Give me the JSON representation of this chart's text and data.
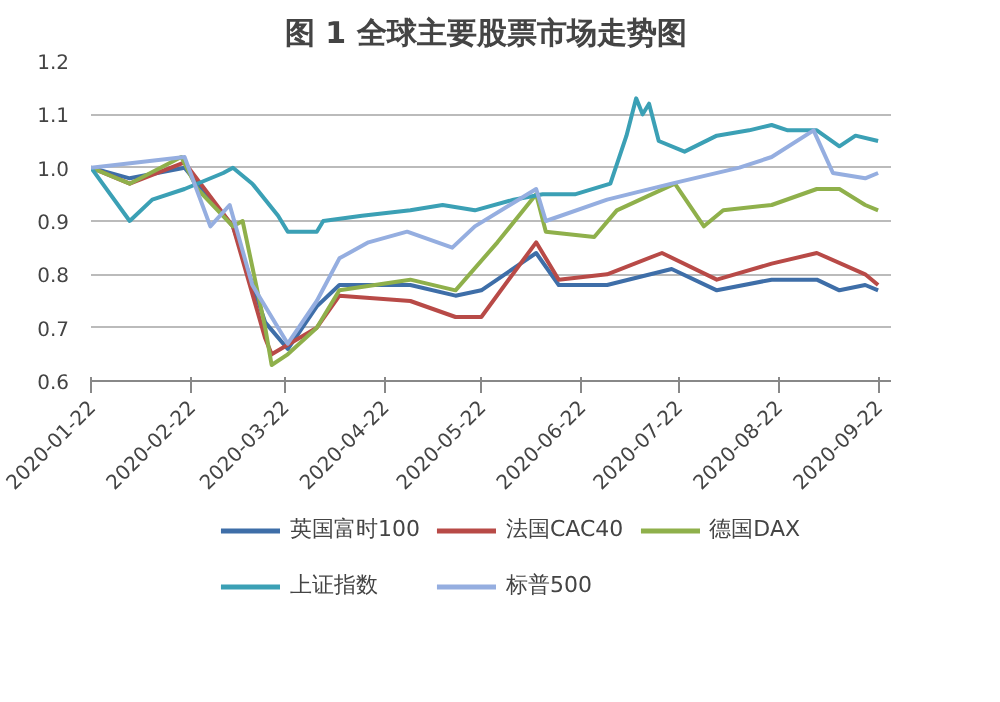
{
  "chart_data": {
    "type": "line",
    "title": "图 1  全球主要股票市场走势图",
    "xlim": [
      "2020-01-22",
      "2020-09-26"
    ],
    "xticks": [
      "2020-01-22",
      "2020-02-22",
      "2020-03-22",
      "2020-04-22",
      "2020-05-22",
      "2020-06-22",
      "2020-07-22",
      "2020-08-22",
      "2020-09-22"
    ],
    "ylim": [
      0.6,
      1.2
    ],
    "yticks": [
      0.6,
      0.7,
      0.8,
      0.9,
      {
        "value": 1.0,
        "label": "1.0"
      },
      1.1,
      1.2
    ],
    "grid": "y",
    "legend": "bottom",
    "marker": "none",
    "line_style": "solid",
    "series": [
      {
        "name": "英国富时100",
        "color": "#3e6ea8",
        "x": [
          "2020-01-22",
          "2020-02-03",
          "2020-02-20",
          "2020-03-06",
          "2020-03-16",
          "2020-03-23",
          "2020-04-01",
          "2020-04-08",
          "2020-04-30",
          "2020-05-14",
          "2020-05-22",
          "2020-06-08",
          "2020-06-15",
          "2020-06-30",
          "2020-07-20",
          "2020-08-03",
          "2020-08-20",
          "2020-09-03",
          "2020-09-10",
          "2020-09-18",
          "2020-09-22"
        ],
        "values": [
          1.0,
          0.98,
          1.0,
          0.89,
          0.71,
          0.66,
          0.74,
          0.78,
          0.78,
          0.76,
          0.77,
          0.84,
          0.78,
          0.78,
          0.81,
          0.77,
          0.79,
          0.79,
          0.77,
          0.78,
          0.77
        ]
      },
      {
        "name": "法国CAC40",
        "color": "#b84a47",
        "x": [
          "2020-01-22",
          "2020-02-03",
          "2020-02-20",
          "2020-03-06",
          "2020-03-16",
          "2020-03-18",
          "2020-04-01",
          "2020-04-08",
          "2020-04-30",
          "2020-05-14",
          "2020-05-22",
          "2020-06-08",
          "2020-06-15",
          "2020-06-30",
          "2020-07-17",
          "2020-08-03",
          "2020-08-20",
          "2020-09-03",
          "2020-09-18",
          "2020-09-22"
        ],
        "values": [
          1.0,
          0.97,
          1.01,
          0.89,
          0.68,
          0.65,
          0.7,
          0.76,
          0.75,
          0.72,
          0.72,
          0.86,
          0.79,
          0.8,
          0.84,
          0.79,
          0.82,
          0.84,
          0.8,
          0.78
        ]
      },
      {
        "name": "德国DAX",
        "color": "#8fb04b",
        "x": [
          "2020-01-22",
          "2020-02-03",
          "2020-02-19",
          "2020-02-24",
          "2020-03-06",
          "2020-03-09",
          "2020-03-16",
          "2020-03-18",
          "2020-03-23",
          "2020-04-01",
          "2020-04-08",
          "2020-04-30",
          "2020-05-14",
          "2020-05-27",
          "2020-06-08",
          "2020-06-11",
          "2020-06-26",
          "2020-07-03",
          "2020-07-21",
          "2020-07-30",
          "2020-08-05",
          "2020-08-20",
          "2020-09-03",
          "2020-09-10",
          "2020-09-18",
          "2020-09-22"
        ],
        "values": [
          1.0,
          0.97,
          1.02,
          0.96,
          0.89,
          0.9,
          0.7,
          0.63,
          0.65,
          0.7,
          0.77,
          0.79,
          0.77,
          0.86,
          0.95,
          0.88,
          0.87,
          0.92,
          0.97,
          0.89,
          0.92,
          0.93,
          0.96,
          0.96,
          0.93,
          0.92
        ]
      },
      {
        "name": "上证指数",
        "color": "#3ba0b5",
        "x": [
          "2020-01-22",
          "2020-02-03",
          "2020-02-10",
          "2020-02-20",
          "2020-03-03",
          "2020-03-06",
          "2020-03-12",
          "2020-03-20",
          "2020-03-23",
          "2020-04-01",
          "2020-04-03",
          "2020-04-15",
          "2020-04-30",
          "2020-05-10",
          "2020-05-20",
          "2020-06-01",
          "2020-06-10",
          "2020-06-20",
          "2020-07-01",
          "2020-07-06",
          "2020-07-09",
          "2020-07-11",
          "2020-07-13",
          "2020-07-16",
          "2020-07-24",
          "2020-08-03",
          "2020-08-13",
          "2020-08-20",
          "2020-08-25",
          "2020-09-03",
          "2020-09-10",
          "2020-09-15",
          "2020-09-22"
        ],
        "values": [
          1.0,
          0.9,
          0.94,
          0.96,
          0.99,
          1.0,
          0.97,
          0.91,
          0.88,
          0.88,
          0.9,
          0.91,
          0.92,
          0.93,
          0.92,
          0.94,
          0.95,
          0.95,
          0.97,
          1.06,
          1.13,
          1.1,
          1.12,
          1.05,
          1.03,
          1.06,
          1.07,
          1.08,
          1.07,
          1.07,
          1.04,
          1.06,
          1.05
        ]
      },
      {
        "name": "标普500",
        "color": "#95aee0",
        "x": [
          "2020-01-22",
          "2020-02-20",
          "2020-02-28",
          "2020-03-05",
          "2020-03-12",
          "2020-03-23",
          "2020-04-01",
          "2020-04-08",
          "2020-04-17",
          "2020-04-29",
          "2020-05-13",
          "2020-05-20",
          "2020-06-08",
          "2020-06-11",
          "2020-06-30",
          "2020-07-20",
          "2020-08-10",
          "2020-08-20",
          "2020-09-02",
          "2020-09-08",
          "2020-09-18",
          "2020-09-22"
        ],
        "values": [
          1.0,
          1.02,
          0.89,
          0.93,
          0.78,
          0.67,
          0.75,
          0.83,
          0.86,
          0.88,
          0.85,
          0.89,
          0.96,
          0.9,
          0.94,
          0.97,
          1.0,
          1.02,
          1.07,
          0.99,
          0.98,
          0.99
        ]
      }
    ]
  }
}
